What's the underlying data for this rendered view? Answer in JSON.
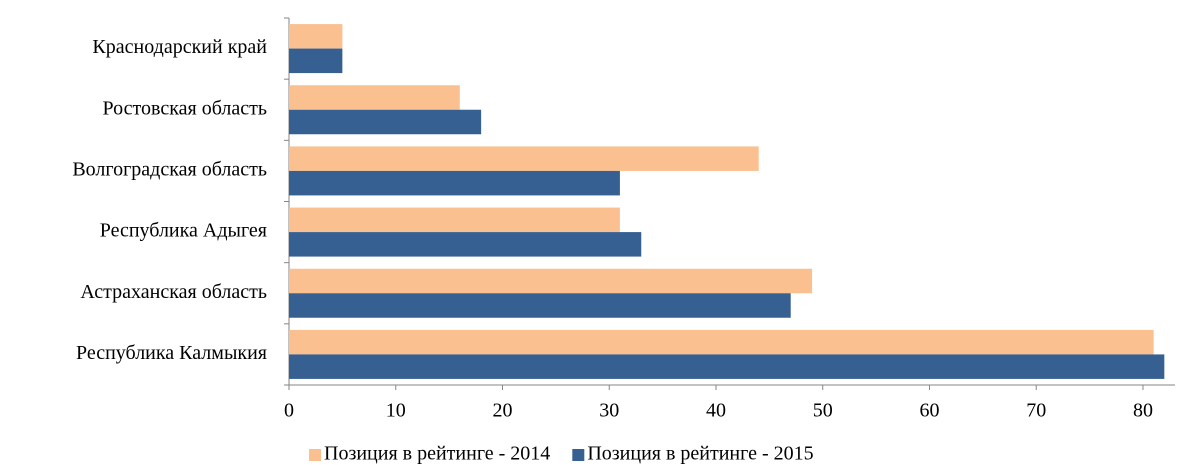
{
  "chart_data": {
    "type": "bar",
    "orientation": "horizontal",
    "categories": [
      "Краснодарский край",
      "Ростовская область",
      "Волгоградская область",
      "Республика Адыгея",
      "Астраханская область",
      "Республика Калмыкия"
    ],
    "series": [
      {
        "name": "Позиция в рейтинге - 2014",
        "color": "#fac090",
        "values": [
          5,
          16,
          44,
          31,
          49,
          81
        ]
      },
      {
        "name": "Позиция в рейтинге - 2015",
        "color": "#376092",
        "values": [
          5,
          18,
          31,
          33,
          47,
          82
        ]
      }
    ],
    "xlim": [
      0,
      83
    ],
    "xticks": [
      0,
      10,
      20,
      30,
      40,
      50,
      60,
      70,
      80
    ],
    "legend": "bottom"
  }
}
